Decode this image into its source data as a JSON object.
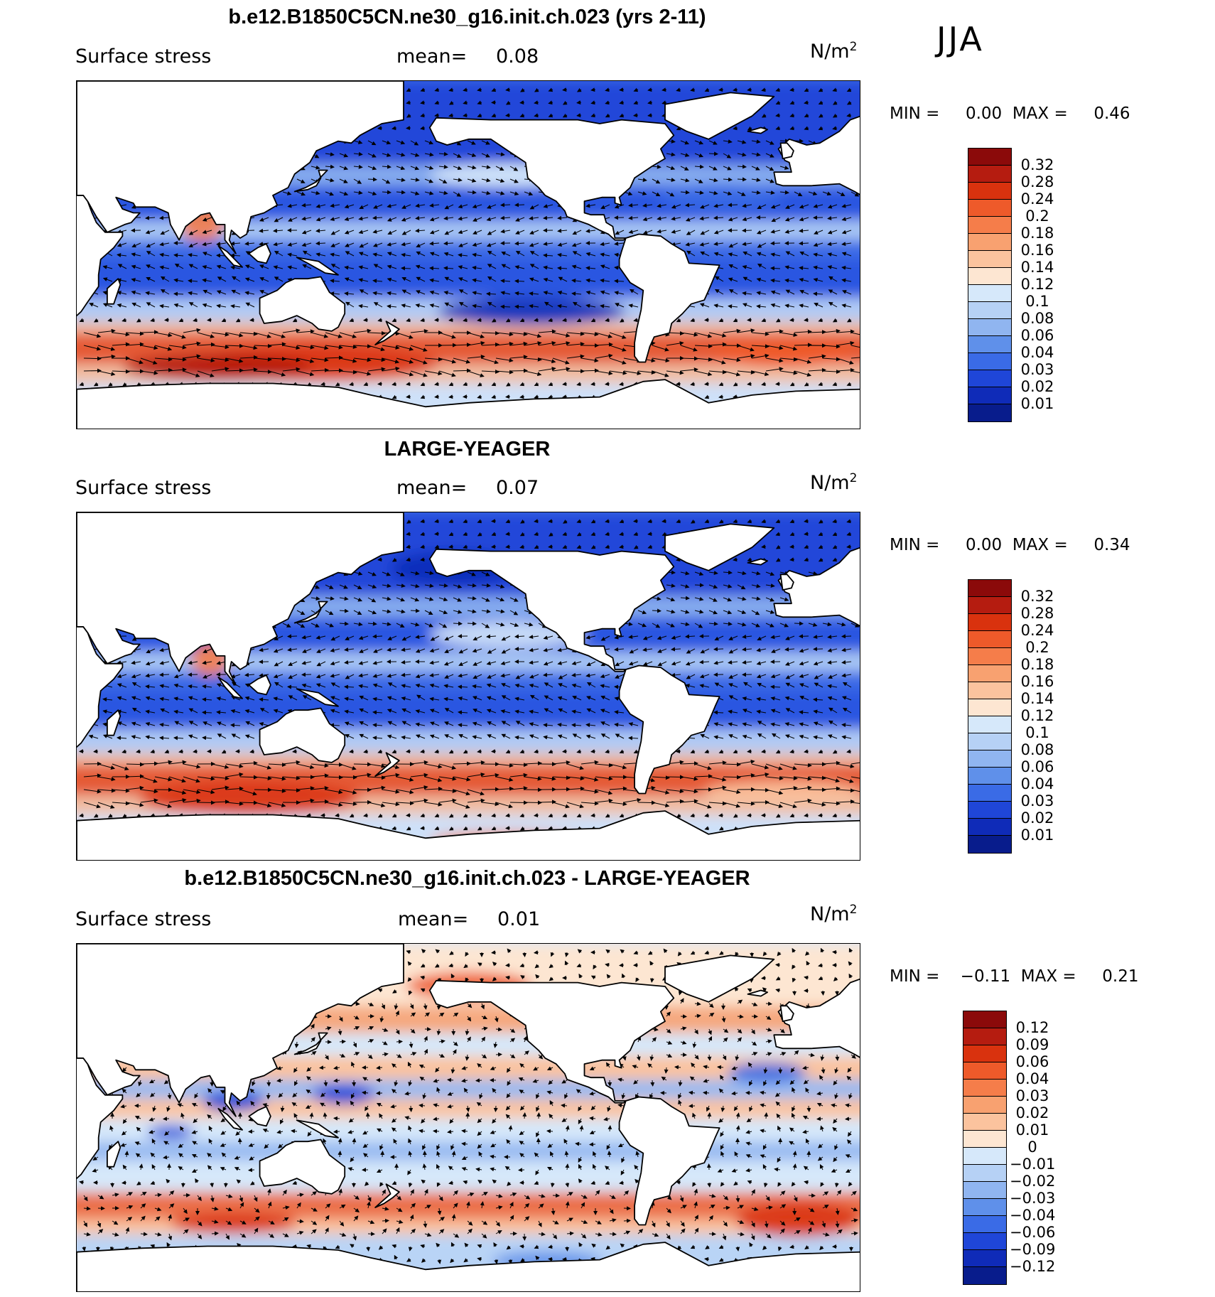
{
  "season": "JJA",
  "panels": [
    {
      "title": "b.e12.B1850C5CN.ne30_g16.init.ch.023 (yrs 2-11)",
      "variable": "Surface stress",
      "mean_label": "mean=",
      "mean_value": "0.08",
      "units_base": "N/m",
      "units_exp": "2",
      "min_label": "MIN =",
      "min_value": "0.00",
      "max_label": "MAX =",
      "max_value": "0.46",
      "levels": [
        "0.32",
        "0.28",
        "0.24",
        "0.2",
        "0.18",
        "0.16",
        "0.14",
        "0.12",
        "0.1",
        "0.08",
        "0.06",
        "0.04",
        "0.03",
        "0.02",
        "0.01"
      ],
      "colors": [
        "#8b0a0a",
        "#b51c10",
        "#d9320e",
        "#ee5a2a",
        "#f57d4a",
        "#f8a170",
        "#fbc39e",
        "#fde6d2",
        "#d6e8fa",
        "#b6d1f5",
        "#90b5f0",
        "#5f90ea",
        "#3a6be6",
        "#1f46d8",
        "#0f2bb8",
        "#081c8c"
      ]
    },
    {
      "title": "LARGE-YEAGER",
      "variable": "Surface stress",
      "mean_label": "mean=",
      "mean_value": "0.07",
      "units_base": "N/m",
      "units_exp": "2",
      "min_label": "MIN =",
      "min_value": "0.00",
      "max_label": "MAX =",
      "max_value": "0.34",
      "levels": [
        "0.32",
        "0.28",
        "0.24",
        "0.2",
        "0.18",
        "0.16",
        "0.14",
        "0.12",
        "0.1",
        "0.08",
        "0.06",
        "0.04",
        "0.03",
        "0.02",
        "0.01"
      ],
      "colors": [
        "#8b0a0a",
        "#b51c10",
        "#d9320e",
        "#ee5a2a",
        "#f57d4a",
        "#f8a170",
        "#fbc39e",
        "#fde6d2",
        "#d6e8fa",
        "#b6d1f5",
        "#90b5f0",
        "#5f90ea",
        "#3a6be6",
        "#1f46d8",
        "#0f2bb8",
        "#081c8c"
      ]
    },
    {
      "title": "b.e12.B1850C5CN.ne30_g16.init.ch.023 - LARGE-YEAGER",
      "variable": "Surface stress",
      "mean_label": "mean=",
      "mean_value": "0.01",
      "units_base": "N/m",
      "units_exp": "2",
      "min_label": "MIN =",
      "min_value": "−0.11",
      "max_label": "MAX =",
      "max_value": "0.21",
      "levels": [
        "0.12",
        "0.09",
        "0.06",
        "0.04",
        "0.03",
        "0.02",
        "0.01",
        "0",
        "−0.01",
        "−0.02",
        "−0.03",
        "−0.04",
        "−0.06",
        "−0.09",
        "−0.12"
      ],
      "colors": [
        "#8b0a0a",
        "#b51c10",
        "#d9320e",
        "#ee5a2a",
        "#f57d4a",
        "#f8a170",
        "#fbc39e",
        "#fde6d2",
        "#d6e8fa",
        "#b6d1f5",
        "#90b5f0",
        "#5f90ea",
        "#3a6be6",
        "#1f46d8",
        "#0f2bb8",
        "#081c8c"
      ]
    }
  ]
}
